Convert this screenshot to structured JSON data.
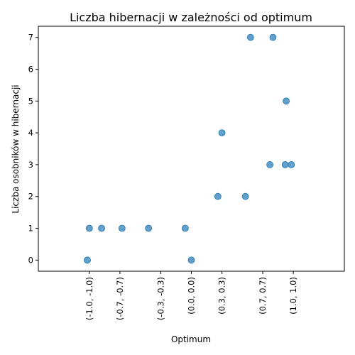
{
  "chart_data": {
    "type": "scatter",
    "title": "Liczba hibernacji w zależności od optimum",
    "xlabel": "Optimum",
    "ylabel": "Liczba osobników w hibernacji",
    "x_ticks": [
      {
        "value": -1.0,
        "label": "(-1.0, -1.0)"
      },
      {
        "value": -0.7,
        "label": "(-0.7, -0.7)"
      },
      {
        "value": -0.3,
        "label": "(-0.3, -0.3)"
      },
      {
        "value": 0.0,
        "label": "(0.0, 0.0)"
      },
      {
        "value": 0.3,
        "label": "(0.3, 0.3)"
      },
      {
        "value": 0.7,
        "label": "(0.7, 0.7)"
      },
      {
        "value": 1.0,
        "label": "(1.0, 1.0)"
      }
    ],
    "y_ticks": [
      0,
      1,
      2,
      3,
      4,
      5,
      6,
      7
    ],
    "xlim": [
      -1.5,
      1.5
    ],
    "ylim": [
      -0.35,
      7.35
    ],
    "grid": false,
    "color": "#1f77b4",
    "points": [
      {
        "x": -1.02,
        "y": 0
      },
      {
        "x": -1.0,
        "y": 1
      },
      {
        "x": -0.88,
        "y": 1
      },
      {
        "x": -0.68,
        "y": 1
      },
      {
        "x": -0.42,
        "y": 1
      },
      {
        "x": -0.06,
        "y": 1
      },
      {
        "x": 0.0,
        "y": 0
      },
      {
        "x": 0.26,
        "y": 2
      },
      {
        "x": 0.3,
        "y": 4
      },
      {
        "x": 0.53,
        "y": 2
      },
      {
        "x": 0.58,
        "y": 7
      },
      {
        "x": 0.8,
        "y": 7
      },
      {
        "x": 0.77,
        "y": 3
      },
      {
        "x": 0.92,
        "y": 3
      },
      {
        "x": 0.93,
        "y": 5
      },
      {
        "x": 0.98,
        "y": 3
      }
    ]
  }
}
